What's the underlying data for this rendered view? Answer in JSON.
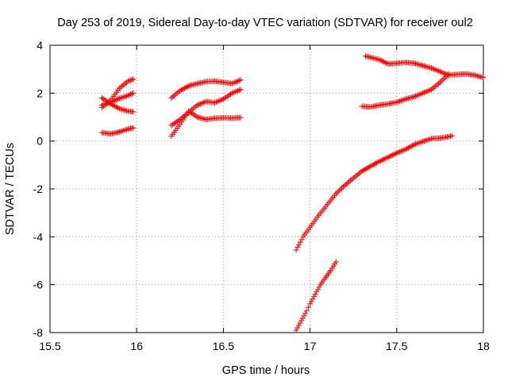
{
  "chart_data": {
    "type": "scatter",
    "title": "Day 253 of 2019, Sidereal Day-to-day VTEC variation (SDTVAR) for receiver oul2",
    "xlabel": "GPS time / hours",
    "ylabel": "SDTVAR / TECUs",
    "xlim": [
      15.5,
      18
    ],
    "ylim": [
      -8,
      4
    ],
    "x_ticks": [
      15.5,
      16,
      16.5,
      17,
      17.5,
      18
    ],
    "x_tick_labels": [
      "15.5",
      "16",
      "16.5",
      "17",
      "17.5",
      "18"
    ],
    "y_ticks": [
      -8,
      -6,
      -4,
      -2,
      0,
      2,
      4
    ],
    "y_tick_labels": [
      "-8",
      "-6",
      "-4",
      "-2",
      "0",
      "2",
      "4"
    ],
    "grid": true,
    "marker": "+",
    "color": "#ff0000",
    "series": [
      {
        "points": [
          [
            15.8,
            1.4
          ],
          [
            15.85,
            1.7
          ],
          [
            15.9,
            2.2
          ],
          [
            15.95,
            2.5
          ],
          [
            15.98,
            2.58
          ]
        ]
      },
      {
        "points": [
          [
            15.8,
            1.8
          ],
          [
            15.85,
            1.55
          ],
          [
            15.9,
            1.35
          ],
          [
            15.95,
            1.25
          ],
          [
            15.98,
            1.22
          ]
        ]
      },
      {
        "points": [
          [
            15.8,
            1.5
          ],
          [
            15.85,
            1.62
          ],
          [
            15.9,
            1.78
          ],
          [
            15.95,
            1.9
          ],
          [
            15.98,
            2.0
          ]
        ]
      },
      {
        "points": [
          [
            15.8,
            0.35
          ],
          [
            15.85,
            0.3
          ],
          [
            15.9,
            0.38
          ],
          [
            15.95,
            0.5
          ],
          [
            15.98,
            0.55
          ]
        ]
      },
      {
        "points": [
          [
            16.2,
            1.8
          ],
          [
            16.25,
            2.1
          ],
          [
            16.3,
            2.3
          ],
          [
            16.35,
            2.4
          ],
          [
            16.4,
            2.48
          ],
          [
            16.45,
            2.5
          ],
          [
            16.5,
            2.45
          ],
          [
            16.55,
            2.4
          ],
          [
            16.6,
            2.55
          ]
        ]
      },
      {
        "points": [
          [
            16.2,
            0.65
          ],
          [
            16.25,
            0.9
          ],
          [
            16.3,
            1.2
          ],
          [
            16.35,
            1.5
          ],
          [
            16.4,
            1.65
          ],
          [
            16.45,
            1.6
          ],
          [
            16.5,
            1.75
          ],
          [
            16.55,
            2.0
          ],
          [
            16.6,
            2.15
          ]
        ]
      },
      {
        "points": [
          [
            16.2,
            0.2
          ],
          [
            16.25,
            0.7
          ],
          [
            16.3,
            1.25
          ],
          [
            16.35,
            1.0
          ],
          [
            16.4,
            0.9
          ],
          [
            16.45,
            0.95
          ],
          [
            16.5,
            0.97
          ],
          [
            16.55,
            0.96
          ],
          [
            16.6,
            0.98
          ]
        ]
      },
      {
        "points": [
          [
            17.32,
            3.55
          ],
          [
            17.4,
            3.4
          ],
          [
            17.45,
            3.22
          ],
          [
            17.5,
            3.25
          ],
          [
            17.55,
            3.28
          ],
          [
            17.6,
            3.25
          ],
          [
            17.65,
            3.15
          ],
          [
            17.7,
            3.05
          ],
          [
            17.75,
            2.9
          ],
          [
            17.8,
            2.75
          ],
          [
            17.85,
            2.78
          ],
          [
            17.9,
            2.8
          ],
          [
            17.95,
            2.75
          ],
          [
            18.0,
            2.65
          ]
        ]
      },
      {
        "points": [
          [
            17.3,
            1.45
          ],
          [
            17.35,
            1.42
          ],
          [
            17.4,
            1.5
          ],
          [
            17.45,
            1.55
          ],
          [
            17.5,
            1.62
          ],
          [
            17.55,
            1.75
          ],
          [
            17.6,
            1.85
          ],
          [
            17.65,
            2.0
          ],
          [
            17.7,
            2.15
          ],
          [
            17.75,
            2.45
          ],
          [
            17.8,
            2.8
          ]
        ]
      },
      {
        "points": [
          [
            16.92,
            -4.55
          ],
          [
            16.96,
            -4.0
          ],
          [
            17.0,
            -3.6
          ],
          [
            17.05,
            -3.1
          ],
          [
            17.1,
            -2.65
          ],
          [
            17.15,
            -2.2
          ],
          [
            17.2,
            -1.85
          ],
          [
            17.25,
            -1.55
          ],
          [
            17.3,
            -1.25
          ],
          [
            17.35,
            -1.05
          ],
          [
            17.4,
            -0.85
          ],
          [
            17.45,
            -0.68
          ],
          [
            17.5,
            -0.5
          ],
          [
            17.55,
            -0.35
          ],
          [
            17.6,
            -0.15
          ],
          [
            17.65,
            -0.02
          ],
          [
            17.7,
            0.1
          ],
          [
            17.75,
            0.12
          ],
          [
            17.8,
            0.18
          ],
          [
            17.82,
            0.22
          ]
        ]
      },
      {
        "points": [
          [
            16.92,
            -7.9
          ],
          [
            16.95,
            -7.5
          ],
          [
            16.98,
            -7.1
          ],
          [
            17.0,
            -6.8
          ],
          [
            17.03,
            -6.4
          ],
          [
            17.06,
            -6.0
          ],
          [
            17.09,
            -5.7
          ],
          [
            17.12,
            -5.4
          ],
          [
            17.15,
            -5.05
          ]
        ]
      }
    ]
  }
}
